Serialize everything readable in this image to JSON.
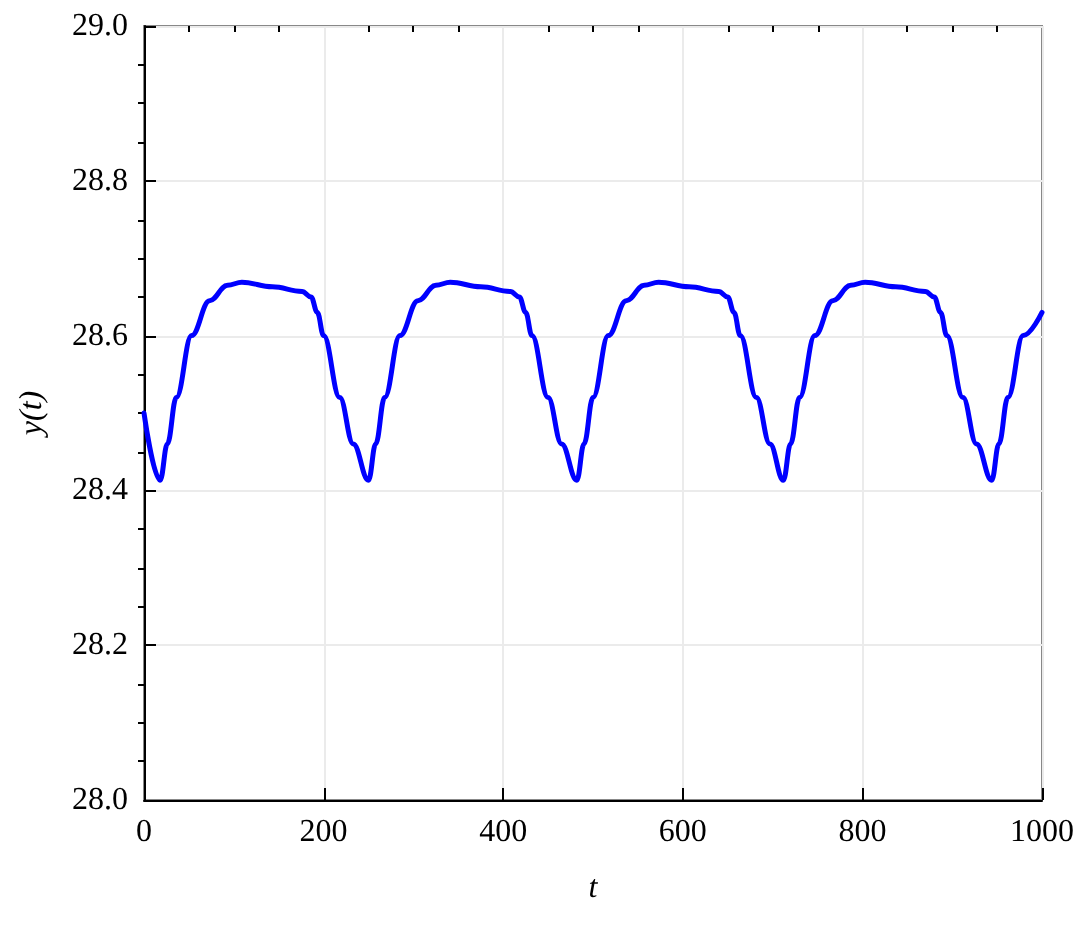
{
  "chart_data": {
    "type": "line",
    "xlabel": "t",
    "ylabel": "y(t)",
    "xlim": [
      0,
      1000
    ],
    "xticks": [
      0,
      200,
      400,
      600,
      800,
      1000
    ],
    "ylim": [
      28.0,
      29.0
    ],
    "yticks": [
      {
        "value": 28.0,
        "label": "28.0"
      },
      28.2,
      28.4,
      28.6,
      28.8,
      {
        "value": 29.0,
        "label": "29.0"
      }
    ],
    "grid": true,
    "marker": "none",
    "line_style": "solid",
    "series": [
      {
        "color": "#0000ff",
        "x": [
          0,
          18,
          26,
          36,
          53,
          73,
          93,
          109,
          143,
          176,
          186,
          193,
          200,
          218,
          233,
          250,
          258,
          268,
          285,
          305,
          325,
          341,
          375,
          408,
          418,
          425,
          432,
          450,
          465,
          482,
          490,
          500,
          517,
          537,
          557,
          573,
          607,
          640,
          650,
          657,
          664,
          682,
          697,
          712,
          720,
          730,
          747,
          767,
          787,
          803,
          837,
          870,
          880,
          887,
          894,
          912,
          927,
          944,
          952,
          962,
          979,
          1000
        ],
        "values": [
          28.5,
          28.413,
          28.46,
          28.52,
          28.6,
          28.645,
          28.665,
          28.669,
          28.663,
          28.657,
          28.65,
          28.63,
          28.6,
          28.52,
          28.46,
          28.413,
          28.46,
          28.52,
          28.6,
          28.645,
          28.665,
          28.669,
          28.663,
          28.657,
          28.65,
          28.63,
          28.6,
          28.52,
          28.46,
          28.413,
          28.46,
          28.52,
          28.6,
          28.645,
          28.665,
          28.669,
          28.663,
          28.657,
          28.65,
          28.63,
          28.6,
          28.52,
          28.46,
          28.413,
          28.46,
          28.52,
          28.6,
          28.645,
          28.665,
          28.669,
          28.663,
          28.657,
          28.65,
          28.63,
          28.6,
          28.52,
          28.46,
          28.413,
          28.46,
          28.52,
          28.6,
          28.63
        ]
      }
    ]
  }
}
